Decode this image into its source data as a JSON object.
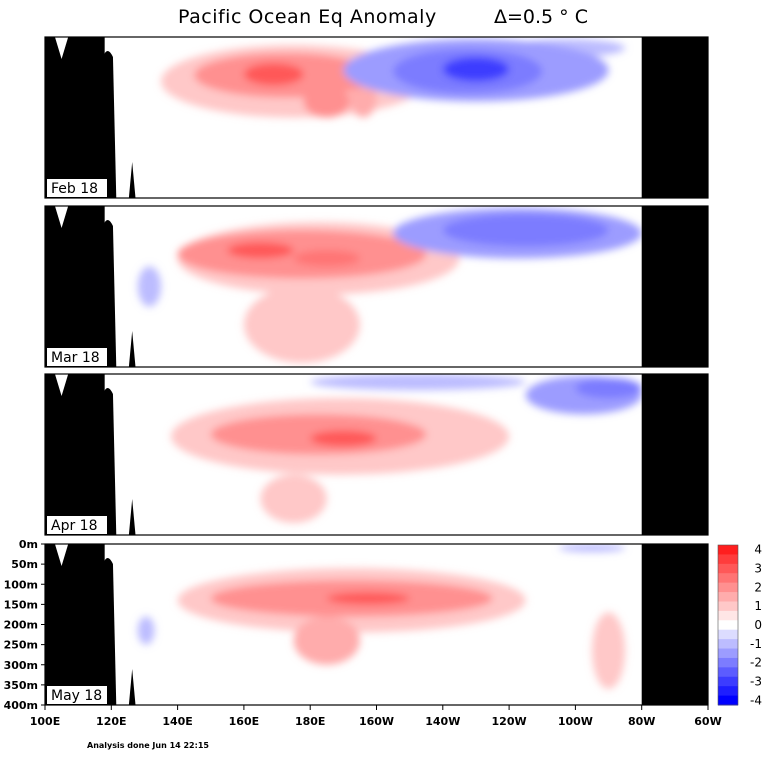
{
  "title": {
    "main": "Pacific Ocean Eq Anomaly",
    "interval": "Δ=0.5 ° C"
  },
  "footnote": "Analysis done Jun 14 22:15",
  "chart_data": {
    "type": "heatmap",
    "panels": [
      {
        "label": "Feb 18",
        "positive": [
          {
            "x": [
              160,
              178
            ],
            "z": [
              65,
              120
            ],
            "v": 3
          },
          {
            "x": [
              145,
              200
            ],
            "z": [
              40,
              150
            ],
            "v": 2
          },
          {
            "x": [
              135,
              215
            ],
            "z": [
              20,
              200
            ],
            "v": 1
          },
          {
            "x": [
              178,
              192
            ],
            "z": [
              120,
              200
            ],
            "v": 2
          },
          {
            "x": [
              192,
              200
            ],
            "z": [
              100,
              200
            ],
            "v": 1.5
          }
        ],
        "negative": [
          {
            "x": [
              220,
              240
            ],
            "z": [
              50,
              110
            ],
            "v": -3
          },
          {
            "x": [
              205,
              250
            ],
            "z": [
              30,
              140
            ],
            "v": -2
          },
          {
            "x": [
              190,
              270
            ],
            "z": [
              5,
              160
            ],
            "v": -1.5
          },
          {
            "x": [
              240,
              275
            ],
            "z": [
              5,
              50
            ],
            "v": -1
          }
        ]
      },
      {
        "label": "Mar 18",
        "positive": [
          {
            "x": [
              155,
              175
            ],
            "z": [
              90,
              130
            ],
            "v": 3
          },
          {
            "x": [
              175,
              195
            ],
            "z": [
              110,
              150
            ],
            "v": 2.5
          },
          {
            "x": [
              140,
              215
            ],
            "z": [
              60,
              180
            ],
            "v": 2
          },
          {
            "x": [
              140,
              225
            ],
            "z": [
              40,
              220
            ],
            "v": 1
          },
          {
            "x": [
              160,
              195
            ],
            "z": [
              200,
              390
            ],
            "v": 1
          }
        ],
        "negative": [
          {
            "x": [
              220,
              270
            ],
            "z": [
              20,
              100
            ],
            "v": -2
          },
          {
            "x": [
              205,
              280
            ],
            "z": [
              5,
              130
            ],
            "v": -1.5
          },
          {
            "x": [
              128,
              135
            ],
            "z": [
              150,
              250
            ],
            "v": -1
          }
        ]
      },
      {
        "label": "Apr 18",
        "positive": [
          {
            "x": [
              180,
              200
            ],
            "z": [
              140,
              180
            ],
            "v": 3
          },
          {
            "x": [
              150,
              215
            ],
            "z": [
              100,
              200
            ],
            "v": 2
          },
          {
            "x": [
              138,
              240
            ],
            "z": [
              60,
              250
            ],
            "v": 1
          },
          {
            "x": [
              165,
              185
            ],
            "z": [
              250,
              370
            ],
            "v": 1
          }
        ],
        "negative": [
          {
            "x": [
              260,
              280
            ],
            "z": [
              10,
              60
            ],
            "v": -2
          },
          {
            "x": [
              245,
              280
            ],
            "z": [
              5,
              100
            ],
            "v": -1.5
          },
          {
            "x": [
              180,
              245
            ],
            "z": [
              0,
              40
            ],
            "v": -1
          }
        ]
      },
      {
        "label": "May 18",
        "positive": [
          {
            "x": [
              185,
              210
            ],
            "z": [
              120,
              150
            ],
            "v": 3
          },
          {
            "x": [
              150,
              235
            ],
            "z": [
              90,
              180
            ],
            "v": 2
          },
          {
            "x": [
              140,
              245
            ],
            "z": [
              60,
              220
            ],
            "v": 1
          },
          {
            "x": [
              175,
              195
            ],
            "z": [
              180,
              300
            ],
            "v": 1.5
          },
          {
            "x": [
              265,
              275
            ],
            "z": [
              170,
              360
            ],
            "v": 1
          }
        ],
        "negative": [
          {
            "x": [
              255,
              275
            ],
            "z": [
              0,
              20
            ],
            "v": -1
          },
          {
            "x": [
              128,
              133
            ],
            "z": [
              180,
              250
            ],
            "v": -1
          }
        ]
      }
    ],
    "x_ticks": [
      "100E",
      "120E",
      "140E",
      "160E",
      "180E",
      "160W",
      "140W",
      "120W",
      "100W",
      "80W",
      "60W"
    ],
    "x_range": [
      100,
      300
    ],
    "depth_ticks": [
      "0m",
      "50m",
      "100m",
      "150m",
      "200m",
      "250m",
      "300m",
      "350m",
      "400m"
    ],
    "depth_range": [
      0,
      400
    ],
    "colorbar": {
      "levels": [
        {
          "v": 4,
          "label": "4",
          "color": "#ff1e1e"
        },
        {
          "v": 3.5,
          "label": "",
          "color": "#ff3c3c"
        },
        {
          "v": 3,
          "label": "3",
          "color": "#ff5858"
        },
        {
          "v": 2.5,
          "label": "",
          "color": "#ff7474"
        },
        {
          "v": 2,
          "label": "2",
          "color": "#ff9090"
        },
        {
          "v": 1.5,
          "label": "",
          "color": "#ffacac"
        },
        {
          "v": 1,
          "label": "1",
          "color": "#ffc8c8"
        },
        {
          "v": 0.5,
          "label": "",
          "color": "#ffe6e6"
        },
        {
          "v": 0,
          "label": "0",
          "color": "#ffffff"
        },
        {
          "v": -0.5,
          "label": "",
          "color": "#dcdcff"
        },
        {
          "v": -1,
          "label": "-1",
          "color": "#bcbcff"
        },
        {
          "v": -1.5,
          "label": "",
          "color": "#9c9cff"
        },
        {
          "v": -2,
          "label": "-2",
          "color": "#7c7cff"
        },
        {
          "v": -2.5,
          "label": "",
          "color": "#5c5cff"
        },
        {
          "v": -3,
          "label": "-3",
          "color": "#3c3cff"
        },
        {
          "v": -3.5,
          "label": "",
          "color": "#1e1eff"
        },
        {
          "v": -4,
          "label": "-4",
          "color": "#0000ff"
        }
      ]
    }
  }
}
